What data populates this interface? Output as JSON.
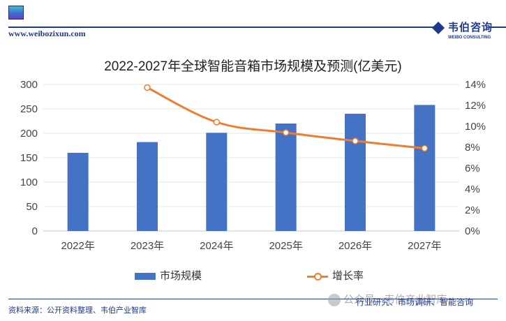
{
  "header": {
    "url": "www.weibozixun.com",
    "brand_cn": "韦伯咨询",
    "brand_en": "WEIBO CONSULTING"
  },
  "chart_data": {
    "type": "bar",
    "title": "2022-2027年全球智能音箱市场规模及预测(亿美元)",
    "categories": [
      "2022年",
      "2023年",
      "2024年",
      "2025年",
      "2026年",
      "2027年"
    ],
    "series": [
      {
        "name": "市场规模",
        "type": "bar",
        "axis": "left",
        "color": "#4472c4",
        "values": [
          160,
          182,
          201,
          220,
          240,
          258
        ]
      },
      {
        "name": "增长率",
        "type": "line",
        "axis": "right",
        "color": "#ed7d31",
        "values": [
          null,
          13.7,
          10.4,
          9.4,
          8.6,
          7.9
        ]
      }
    ],
    "y_left": {
      "min": 0,
      "max": 300,
      "ticks": [
        "0",
        "50",
        "100",
        "150",
        "200",
        "250",
        "300"
      ]
    },
    "y_right": {
      "min": 0,
      "max": 14,
      "ticks": [
        "0%",
        "2%",
        "4%",
        "6%",
        "8%",
        "10%",
        "12%",
        "14%"
      ]
    },
    "grid": true,
    "legend_position": "bottom"
  },
  "legend": {
    "bar_label": "市场规模",
    "line_label": "增长率"
  },
  "footer": {
    "source": "资料来源：公开资料整理、韦伯产业智库",
    "watermark": "公众号 · 韦伯产业智库",
    "watermark_sub": "行业研究、市场调研、智能咨询"
  }
}
